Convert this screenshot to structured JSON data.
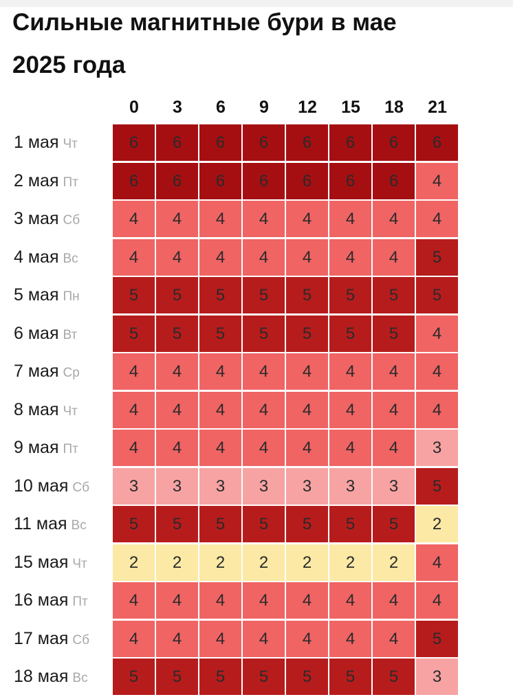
{
  "title": {
    "line1": "Сильные магнитные бури в мае",
    "line2": "2025 года"
  },
  "colors": {
    "level_2": "#fbe9a5",
    "level_3": "#f7a3a3",
    "level_4": "#f06464",
    "level_5": "#b71c1c",
    "level_6": "#a50f12"
  },
  "chart_data": {
    "type": "heatmap",
    "title": "Сильные магнитные бури в мае 2025 года",
    "columns": [
      "0",
      "3",
      "6",
      "9",
      "12",
      "15",
      "18",
      "21"
    ],
    "rows": [
      {
        "date": "1 мая",
        "dow": "Чт",
        "values": [
          6,
          6,
          6,
          6,
          6,
          6,
          6,
          6
        ]
      },
      {
        "date": "2 мая",
        "dow": "Пт",
        "values": [
          6,
          6,
          6,
          6,
          6,
          6,
          6,
          4
        ]
      },
      {
        "date": "3 мая",
        "dow": "Сб",
        "values": [
          4,
          4,
          4,
          4,
          4,
          4,
          4,
          4
        ]
      },
      {
        "date": "4 мая",
        "dow": "Вс",
        "values": [
          4,
          4,
          4,
          4,
          4,
          4,
          4,
          5
        ]
      },
      {
        "date": "5 мая",
        "dow": "Пн",
        "values": [
          5,
          5,
          5,
          5,
          5,
          5,
          5,
          5
        ]
      },
      {
        "date": "6 мая",
        "dow": "Вт",
        "values": [
          5,
          5,
          5,
          5,
          5,
          5,
          5,
          4
        ]
      },
      {
        "date": "7 мая",
        "dow": "Ср",
        "values": [
          4,
          4,
          4,
          4,
          4,
          4,
          4,
          4
        ]
      },
      {
        "date": "8 мая",
        "dow": "Чт",
        "values": [
          4,
          4,
          4,
          4,
          4,
          4,
          4,
          4
        ]
      },
      {
        "date": "9 мая",
        "dow": "Пт",
        "values": [
          4,
          4,
          4,
          4,
          4,
          4,
          4,
          3
        ]
      },
      {
        "date": "10 мая",
        "dow": "Сб",
        "values": [
          3,
          3,
          3,
          3,
          3,
          3,
          3,
          5
        ]
      },
      {
        "date": "11 мая",
        "dow": "Вс",
        "values": [
          5,
          5,
          5,
          5,
          5,
          5,
          5,
          2
        ]
      },
      {
        "date": "15 мая",
        "dow": "Чт",
        "values": [
          2,
          2,
          2,
          2,
          2,
          2,
          2,
          4
        ]
      },
      {
        "date": "16 мая",
        "dow": "Пт",
        "values": [
          4,
          4,
          4,
          4,
          4,
          4,
          4,
          4
        ]
      },
      {
        "date": "17 мая",
        "dow": "Сб",
        "values": [
          4,
          4,
          4,
          4,
          4,
          4,
          4,
          5
        ]
      },
      {
        "date": "18 мая",
        "dow": "Вс",
        "values": [
          5,
          5,
          5,
          5,
          5,
          5,
          5,
          3
        ]
      }
    ]
  }
}
